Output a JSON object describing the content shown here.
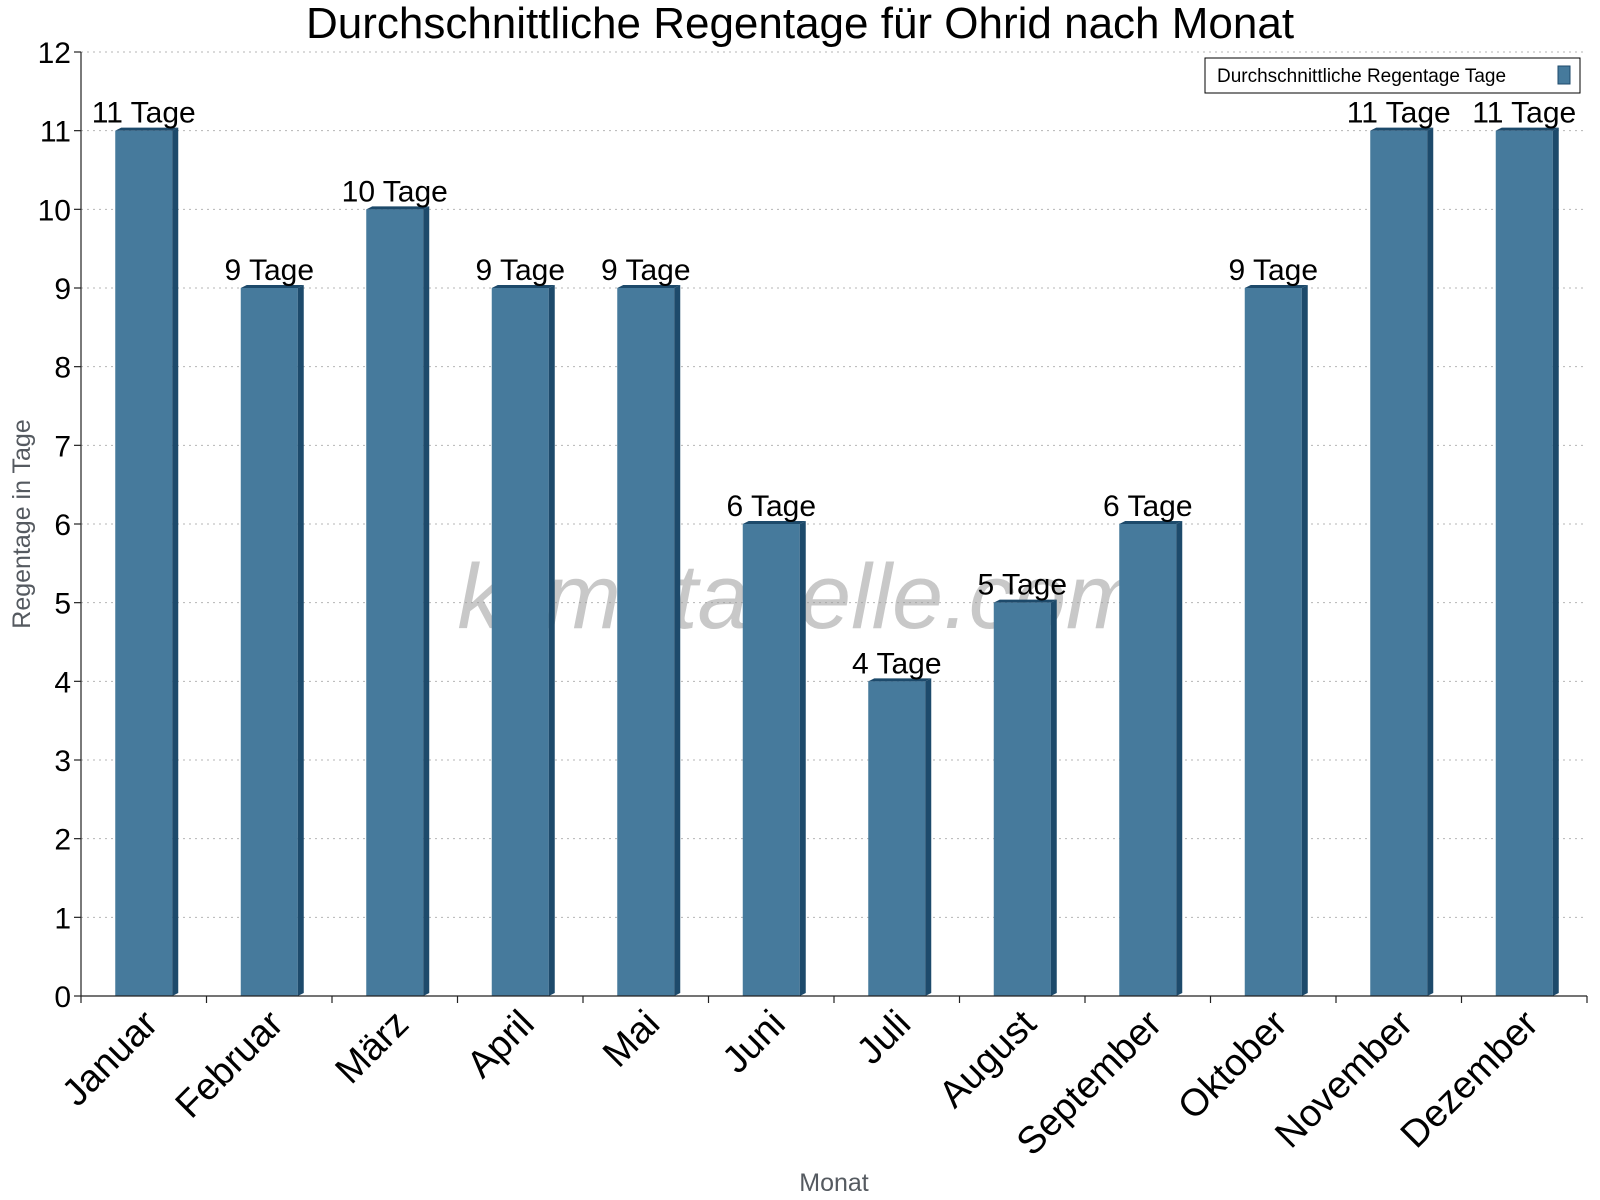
{
  "chart_data": {
    "type": "bar",
    "title": "Durchschnittliche Regentage für Ohrid nach Monat",
    "xlabel": "Monat",
    "ylabel": "Regentage in Tage",
    "ylim": [
      0,
      12
    ],
    "yticks": [
      0,
      1,
      2,
      3,
      4,
      5,
      6,
      7,
      8,
      9,
      10,
      11,
      12
    ],
    "grid": true,
    "legend_position": "top-right",
    "categories": [
      "Januar",
      "Februar",
      "März",
      "April",
      "Mai",
      "Juni",
      "Juli",
      "August",
      "September",
      "Oktober",
      "November",
      "Dezember"
    ],
    "series": [
      {
        "name": "Durchschnittliche Regentage Tage",
        "values": [
          11,
          9,
          10,
          9,
          9,
          6,
          4,
          5,
          6,
          9,
          11,
          11
        ],
        "labels": [
          "11 Tage",
          "9 Tage",
          "10 Tage",
          "9 Tage",
          "9 Tage",
          "6 Tage",
          "4 Tage",
          "5 Tage",
          "6 Tage",
          "9 Tage",
          "11 Tage",
          "11 Tage"
        ],
        "color": "#467a9c",
        "side_color": "#1d4a6b"
      }
    ]
  },
  "watermark": "klimatabelle.com"
}
